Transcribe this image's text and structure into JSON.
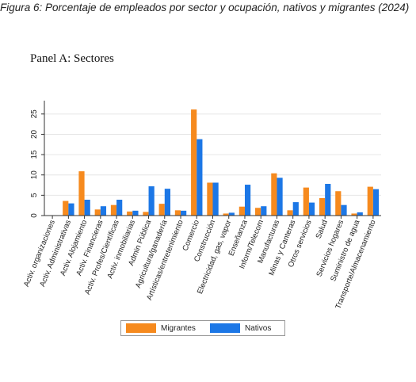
{
  "figure_title": "Figura  6: Porcentaje de empleados por sector y ocupación, nativos y migrantes (2024)",
  "panel_title": "Panel A: Sectores",
  "colors": {
    "migrantes": "#F68A1E",
    "nativos": "#1C77E6",
    "grid": "#E6E6E6",
    "axis": "#333333"
  },
  "chart_data": {
    "type": "bar",
    "title": "",
    "xlabel": "",
    "ylabel": "",
    "ylim": [
      0,
      27.5
    ],
    "yticks": [
      0,
      5,
      10,
      15,
      20,
      25
    ],
    "grid": true,
    "legend_position": "bottom",
    "categories": [
      "Activ. organizaciones",
      "Activ. Administrativas",
      "Activ. Alojamiento",
      "Activ. Financieras",
      "Activ. Profes/Científicas",
      "Activ. inmobiliarias",
      "Admin Pública",
      "Agricultura/ganadería",
      "Artísticas/entretenimiento",
      "Comercio",
      "Construcción",
      "Electricidad, gas, vapor",
      "Enseñanza",
      "Inform/Telecom",
      "Manufacturas",
      "Minas y Canteras",
      "Otros servicios",
      "Salud",
      "Servicios hogares",
      "Suministro de agua",
      "Transporte/Almacenamiento"
    ],
    "series": [
      {
        "name": "Migrantes",
        "values": [
          0.0,
          3.6,
          10.9,
          1.5,
          2.6,
          1.0,
          0.9,
          2.9,
          1.3,
          26.1,
          8.1,
          0.5,
          2.2,
          1.9,
          10.4,
          1.3,
          6.9,
          4.3,
          6.0,
          0.5,
          7.1
        ]
      },
      {
        "name": "Nativos",
        "values": [
          0.0,
          3.0,
          3.9,
          2.3,
          3.9,
          1.2,
          7.2,
          6.6,
          1.2,
          18.8,
          8.1,
          0.7,
          7.6,
          2.3,
          9.3,
          3.3,
          3.2,
          7.8,
          2.6,
          0.8,
          6.5
        ]
      }
    ]
  },
  "legend": {
    "migrantes_label": "Migrantes",
    "nativos_label": "Nativos"
  }
}
